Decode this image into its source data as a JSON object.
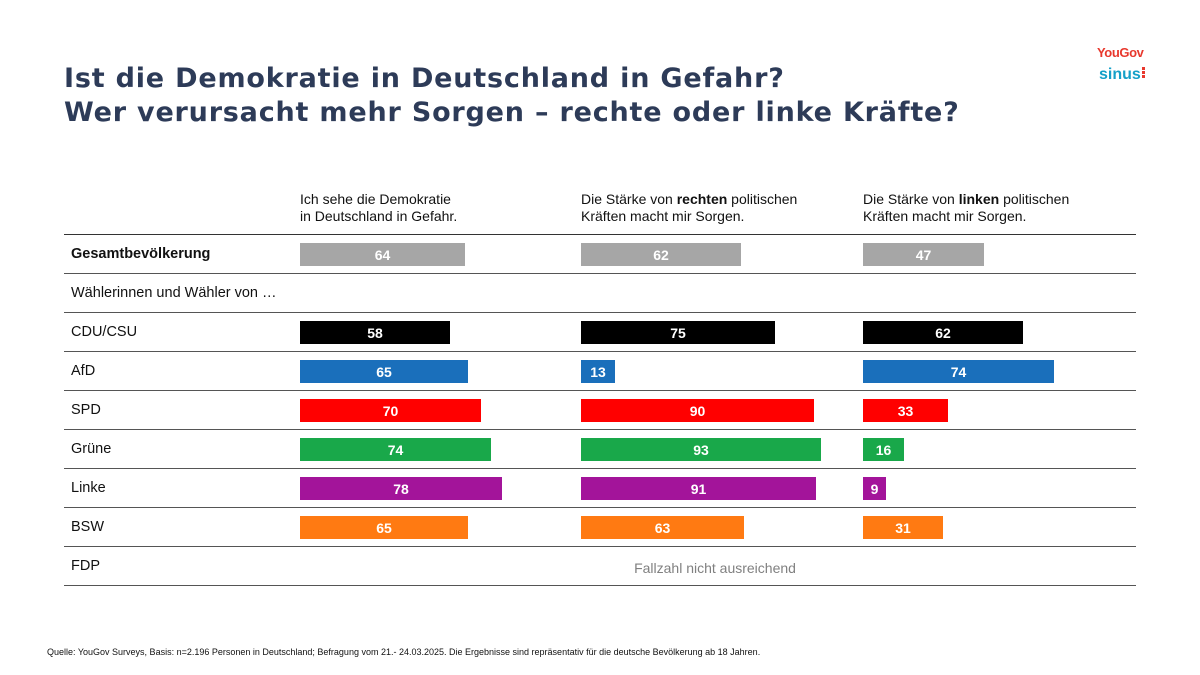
{
  "title": {
    "line1": "Ist die Demokratie in Deutschland in Gefahr?",
    "line2": "Wer verursacht mehr Sorgen – rechte oder linke Kräfte?"
  },
  "logos": {
    "yougov": "YouGov",
    "sinus": "sinus"
  },
  "columns": [
    {
      "line1_a": "Ich sehe die Demokratie",
      "line1_bold": "",
      "line1_b": "",
      "line2": "in Deutschland in Gefahr."
    },
    {
      "line1_a": "Die Stärke von ",
      "line1_bold": "rechten",
      "line1_b": " politischen",
      "line2": "Kräften macht mir Sorgen."
    },
    {
      "line1_a": "Die Stärke von ",
      "line1_bold": "linken",
      "line1_b": " politischen",
      "line2": "Kräften macht mir Sorgen."
    }
  ],
  "rows": [
    {
      "label": "Gesamtbevölkerung",
      "bold": true,
      "color": "#a6a6a6",
      "values": [
        64,
        62,
        47
      ]
    },
    {
      "label": "Wählerinnen und Wähler von …",
      "bold": false,
      "color": null,
      "values": null
    },
    {
      "label": "CDU/CSU",
      "bold": false,
      "color": "#000000",
      "values": [
        58,
        75,
        62
      ]
    },
    {
      "label": "AfD",
      "bold": false,
      "color": "#1a6fbb",
      "values": [
        65,
        13,
        74
      ]
    },
    {
      "label": "SPD",
      "bold": false,
      "color": "#ff0000",
      "values": [
        70,
        90,
        33
      ]
    },
    {
      "label": "Grüne",
      "bold": false,
      "color": "#19a84a",
      "values": [
        74,
        93,
        16
      ]
    },
    {
      "label": "Linke",
      "bold": false,
      "color": "#a3149a",
      "values": [
        78,
        91,
        9
      ]
    },
    {
      "label": "BSW",
      "bold": false,
      "color": "#ff7a12",
      "values": [
        65,
        63,
        31
      ]
    },
    {
      "label": "FDP",
      "bold": false,
      "color": null,
      "values": null,
      "note": "Fallzahl nicht ausreichend"
    }
  ],
  "chart_data": {
    "type": "bar",
    "orientation": "horizontal",
    "categories": [
      "Gesamtbevölkerung",
      "CDU/CSU",
      "AfD",
      "SPD",
      "Grüne",
      "Linke",
      "BSW"
    ],
    "series": [
      {
        "name": "Ich sehe die Demokratie in Deutschland in Gefahr.",
        "values": [
          64,
          58,
          65,
          70,
          74,
          78,
          65
        ]
      },
      {
        "name": "Die Stärke von rechten politischen Kräften macht mir Sorgen.",
        "values": [
          62,
          75,
          13,
          90,
          93,
          91,
          63
        ]
      },
      {
        "name": "Die Stärke von linken politischen Kräften macht mir Sorgen.",
        "values": [
          47,
          62,
          74,
          33,
          16,
          9,
          31
        ]
      }
    ],
    "xlim": [
      0,
      100
    ]
  },
  "source": "Quelle: YouGov Surveys, Basis: n=2.196 Personen in Deutschland; Befragung vom 21.- 24.03.2025. Die Ergebnisse sind repräsentativ für die deutsche Bevölkerung ab 18 Jahren."
}
